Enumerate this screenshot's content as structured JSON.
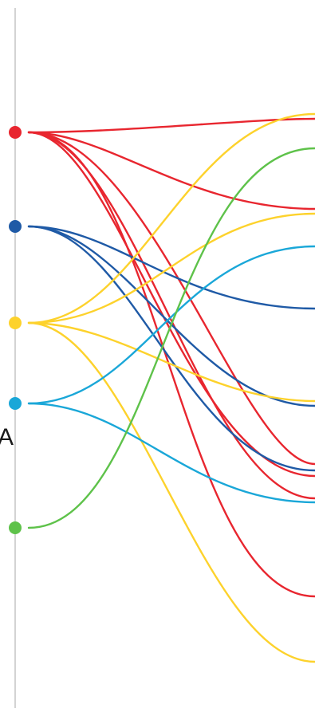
{
  "axis": {
    "label": "A"
  },
  "colors": {
    "axis_line": "#c8c8c8",
    "red": "#e8262f",
    "navy": "#1f5aa6",
    "yellow": "#fdd22c",
    "cyan": "#1aa7d8",
    "green": "#5ec24a"
  },
  "sources": [
    {
      "id": "red",
      "color": "#e8262f"
    },
    {
      "id": "navy",
      "color": "#1f5aa6"
    },
    {
      "id": "yellow",
      "color": "#fdd22c"
    },
    {
      "id": "cyan",
      "color": "#1aa7d8"
    },
    {
      "id": "green",
      "color": "#5ec24a"
    }
  ],
  "links": [
    {
      "source": "red",
      "target_index": 1
    },
    {
      "source": "red",
      "target_index": 4
    },
    {
      "source": "red",
      "target_index": 10
    },
    {
      "source": "red",
      "target_index": 11
    },
    {
      "source": "red",
      "target_index": 13
    },
    {
      "source": "red",
      "target_index": 14
    },
    {
      "source": "navy",
      "target_index": 6
    },
    {
      "source": "navy",
      "target_index": 8
    },
    {
      "source": "navy",
      "target_index": 12
    },
    {
      "source": "yellow",
      "target_index": 0
    },
    {
      "source": "yellow",
      "target_index": 3
    },
    {
      "source": "yellow",
      "target_index": 7
    },
    {
      "source": "yellow",
      "target_index": 15
    },
    {
      "source": "cyan",
      "target_index": 5
    },
    {
      "source": "cyan",
      "target_index": 9
    },
    {
      "source": "green",
      "target_index": 2
    }
  ]
}
